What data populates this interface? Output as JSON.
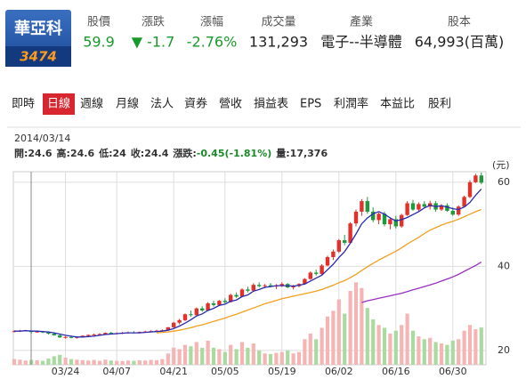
{
  "header": {
    "name": "華亞科",
    "code": "3474",
    "stats": [
      {
        "label": "股價",
        "value": "59.9",
        "color": "#1a9a2a"
      },
      {
        "label": "漲跌",
        "value": "▼ -1.7",
        "color": "#1a9a2a"
      },
      {
        "label": "漲幅",
        "value": "-2.76%",
        "color": "#1a9a2a"
      },
      {
        "label": "成交量",
        "value": "131,293",
        "color": "#222222"
      },
      {
        "label": "產業",
        "value": "電子--半導體",
        "color": "#222222"
      },
      {
        "label": "股本",
        "value": "64,993(百萬)",
        "color": "#222222"
      }
    ]
  },
  "tabs": [
    "即時",
    "日線",
    "週線",
    "月線",
    "法人",
    "資券",
    "營收",
    "損益表",
    "EPS",
    "利潤率",
    "本益比",
    "股利"
  ],
  "active_tab": 1,
  "chart_data": {
    "type": "candlestick",
    "date": "2014/03/14",
    "info": [
      {
        "label": "開:",
        "value": "24.6"
      },
      {
        "label": "高:",
        "value": "24.6"
      },
      {
        "label": "低:",
        "value": "24"
      },
      {
        "label": "收:",
        "value": "24.4"
      },
      {
        "label": "漲跌:",
        "value": "-0.45(-1.81%)",
        "color": "#1a8a2a"
      },
      {
        "label": "量:",
        "value": "17,376"
      }
    ],
    "unit": "(元)",
    "categories": [
      null,
      null,
      null,
      null,
      null,
      null,
      null,
      null,
      null,
      "03/24",
      null,
      null,
      null,
      null,
      null,
      null,
      null,
      null,
      "04/07",
      null,
      null,
      null,
      null,
      null,
      null,
      null,
      null,
      null,
      "04/21",
      null,
      null,
      null,
      null,
      null,
      null,
      null,
      null,
      "05/05",
      null,
      null,
      null,
      null,
      null,
      null,
      null,
      null,
      null,
      "05/19",
      null,
      null,
      null,
      null,
      null,
      null,
      null,
      null,
      null,
      "06/02",
      null,
      null,
      null,
      null,
      null,
      null,
      null,
      null,
      null,
      "06/16",
      null,
      null,
      null,
      null,
      null,
      null,
      null,
      null,
      null,
      "06/30",
      null,
      null,
      null,
      null,
      null
    ],
    "open": [
      24.5,
      24.6,
      24.8,
      24.6,
      24.4,
      24.5,
      24.3,
      24.0,
      23.6,
      23.1,
      23.2,
      23.0,
      23.2,
      23.5,
      23.7,
      23.8,
      23.9,
      24.2,
      24.0,
      24.1,
      24.2,
      24.3,
      24.2,
      24.4,
      24.5,
      24.6,
      24.7,
      24.8,
      25.5,
      26.6,
      27.2,
      28.6,
      28.4,
      30.0,
      29.5,
      31.2,
      30.8,
      31.8,
      31.5,
      33.2,
      32.8,
      34.5,
      34.2,
      35.6,
      35.3,
      35.5,
      35.2,
      35.4,
      35.8,
      35.0,
      35.3,
      35.8,
      37.0,
      38.5,
      38.2,
      40.2,
      42.2,
      43.5,
      46.2,
      45.6,
      50.2,
      53.0,
      55.5,
      53.0,
      51.0,
      52.5,
      50.0,
      51.2,
      49.5,
      52.2,
      55.0,
      53.5,
      54.8,
      54.2,
      55.0,
      53.5,
      54.5,
      53.2,
      52.3,
      54.2,
      56.5,
      60.0,
      61.6
    ],
    "high": [
      24.8,
      24.9,
      24.9,
      24.6,
      24.7,
      24.6,
      24.5,
      24.2,
      23.8,
      23.4,
      23.5,
      23.3,
      23.6,
      23.8,
      24.0,
      24.1,
      24.3,
      24.4,
      24.3,
      24.4,
      24.5,
      24.6,
      24.5,
      24.7,
      24.8,
      24.9,
      25.0,
      25.6,
      26.8,
      27.5,
      28.8,
      29.5,
      30.2,
      30.5,
      31.5,
      31.8,
      32.0,
      32.4,
      33.5,
      33.8,
      34.8,
      35.2,
      36.0,
      36.2,
      35.8,
      36.0,
      35.8,
      36.2,
      36.0,
      35.6,
      36.0,
      37.2,
      38.8,
      39.2,
      40.5,
      42.5,
      44.0,
      46.5,
      47.5,
      50.5,
      53.5,
      56.0,
      56.5,
      54.0,
      52.8,
      53.0,
      51.5,
      52.0,
      52.5,
      55.5,
      55.8,
      55.2,
      55.5,
      55.6,
      55.5,
      54.8,
      55.0,
      54.0,
      54.5,
      56.8,
      60.5,
      62.0,
      62.3
    ],
    "low": [
      24.3,
      24.4,
      24.5,
      24.0,
      24.2,
      24.1,
      23.8,
      23.5,
      23.0,
      22.8,
      22.9,
      22.8,
      23.1,
      23.3,
      23.5,
      23.6,
      23.8,
      23.9,
      23.8,
      23.9,
      24.0,
      24.1,
      24.0,
      24.2,
      24.3,
      24.4,
      24.5,
      24.7,
      25.4,
      26.2,
      27.0,
      28.0,
      28.3,
      29.2,
      29.4,
      30.4,
      30.6,
      31.2,
      31.4,
      32.5,
      32.7,
      33.8,
      34.0,
      35.0,
      34.8,
      35.0,
      34.6,
      35.1,
      34.8,
      34.5,
      35.0,
      35.6,
      36.8,
      37.8,
      38.0,
      40.0,
      41.5,
      43.2,
      45.0,
      45.4,
      49.5,
      52.0,
      52.5,
      50.5,
      50.0,
      49.5,
      48.8,
      49.0,
      49.2,
      52.0,
      53.2,
      53.0,
      53.8,
      53.5,
      53.0,
      53.2,
      53.0,
      52.0,
      52.0,
      54.0,
      56.2,
      59.8,
      59.5
    ],
    "close": [
      24.6,
      24.7,
      24.8,
      24.4,
      24.5,
      24.3,
      24.0,
      23.6,
      23.1,
      23.2,
      23.0,
      23.2,
      23.5,
      23.7,
      23.8,
      23.9,
      24.2,
      24.0,
      24.1,
      24.2,
      24.3,
      24.2,
      24.4,
      24.5,
      24.6,
      24.7,
      24.8,
      25.5,
      26.6,
      27.2,
      28.6,
      28.4,
      30.0,
      29.5,
      31.2,
      30.8,
      31.8,
      31.5,
      33.2,
      32.8,
      34.5,
      34.2,
      35.6,
      35.3,
      35.5,
      35.2,
      35.4,
      35.8,
      35.0,
      35.3,
      35.8,
      37.0,
      38.5,
      38.2,
      40.2,
      42.2,
      43.5,
      46.2,
      45.6,
      50.2,
      53.0,
      55.5,
      53.0,
      51.0,
      52.5,
      50.0,
      51.2,
      49.5,
      52.2,
      55.0,
      53.5,
      54.8,
      54.2,
      55.0,
      53.5,
      54.5,
      53.2,
      52.3,
      54.2,
      56.5,
      60.0,
      61.6,
      59.9
    ],
    "volume": [
      20000,
      18000,
      15000,
      17376,
      16000,
      14000,
      22000,
      30000,
      35000,
      25000,
      20000,
      18000,
      16000,
      15000,
      17000,
      14000,
      18000,
      15000,
      14000,
      13000,
      15000,
      14000,
      16000,
      15000,
      17000,
      16000,
      20000,
      40000,
      60000,
      55000,
      70000,
      65000,
      80000,
      60000,
      85000,
      60000,
      55000,
      45000,
      70000,
      55000,
      80000,
      60000,
      75000,
      50000,
      40000,
      38000,
      42000,
      45000,
      50000,
      40000,
      45000,
      90000,
      110000,
      90000,
      130000,
      170000,
      190000,
      230000,
      180000,
      260000,
      290000,
      270000,
      200000,
      160000,
      140000,
      130000,
      110000,
      120000,
      140000,
      180000,
      120000,
      100000,
      90000,
      95000,
      80000,
      75000,
      70000,
      85000,
      90000,
      120000,
      140000,
      125000,
      131293
    ],
    "volume_ylim": [
      0,
      310000
    ],
    "lines": [
      {
        "color": "#2a2ab0",
        "values": [
          24.6,
          24.6,
          24.7,
          24.6,
          24.6,
          24.5,
          24.4,
          24.2,
          23.9,
          23.6,
          23.4,
          23.2,
          23.2,
          23.3,
          23.4,
          23.6,
          23.8,
          23.9,
          24.0,
          24.1,
          24.2,
          24.2,
          24.2,
          24.3,
          24.4,
          24.5,
          24.6,
          24.8,
          25.2,
          25.8,
          26.5,
          27.3,
          28.2,
          28.7,
          29.5,
          30.0,
          30.7,
          31.0,
          31.7,
          32.0,
          32.8,
          33.2,
          34.1,
          34.5,
          35.0,
          35.2,
          35.4,
          35.4,
          35.4,
          35.3,
          35.5,
          35.8,
          36.5,
          37.2,
          37.9,
          39.2,
          40.5,
          42.1,
          43.5,
          45.5,
          47.7,
          50.1,
          51.5,
          52.5,
          53.0,
          52.4,
          51.5,
          50.8,
          51.1,
          51.6,
          52.3,
          53.0,
          53.9,
          54.5,
          54.2,
          54.4,
          54.1,
          53.7,
          53.5,
          54.1,
          55.2,
          56.9,
          58.4
        ]
      },
      {
        "color": "#f0a020",
        "values": [
          null,
          null,
          null,
          null,
          null,
          null,
          null,
          null,
          null,
          null,
          null,
          null,
          null,
          null,
          null,
          null,
          null,
          null,
          null,
          null,
          null,
          null,
          null,
          null,
          null,
          24.2,
          24.3,
          24.4,
          24.6,
          24.8,
          25.1,
          25.4,
          25.8,
          26.1,
          26.5,
          26.9,
          27.3,
          27.7,
          28.2,
          28.6,
          29.1,
          29.6,
          30.1,
          30.6,
          31.1,
          31.5,
          31.9,
          32.3,
          32.6,
          32.9,
          33.2,
          33.5,
          33.8,
          34.1,
          34.5,
          35.0,
          35.5,
          36.1,
          36.6,
          37.3,
          38.1,
          39.0,
          39.9,
          40.7,
          41.5,
          42.2,
          42.9,
          43.6,
          44.4,
          45.3,
          46.1,
          46.9,
          47.8,
          48.6,
          49.2,
          49.8,
          50.3,
          50.7,
          51.2,
          51.8,
          52.4,
          53.0,
          53.5
        ]
      },
      {
        "color": "#9a30c0",
        "values": [
          null,
          null,
          null,
          null,
          null,
          null,
          null,
          null,
          null,
          null,
          null,
          null,
          null,
          null,
          null,
          null,
          null,
          null,
          null,
          null,
          null,
          null,
          null,
          null,
          null,
          null,
          null,
          null,
          null,
          null,
          null,
          null,
          null,
          null,
          null,
          null,
          null,
          null,
          null,
          null,
          null,
          null,
          null,
          null,
          null,
          null,
          null,
          null,
          null,
          null,
          null,
          null,
          null,
          null,
          null,
          null,
          null,
          null,
          null,
          null,
          null,
          31.4,
          31.8,
          32.1,
          32.4,
          32.7,
          33.0,
          33.3,
          33.6,
          34.0,
          34.4,
          34.8,
          35.2,
          35.6,
          36.0,
          36.5,
          37.0,
          37.5,
          38.1,
          38.8,
          39.5,
          40.2,
          41.0
        ]
      }
    ],
    "up_color": "#e2302a",
    "down_color": "#1d9b3c",
    "up_volume_color": "#f5b5b5",
    "down_volume_color": "#a9dba0",
    "ylim": [
      16.6,
      62.5
    ],
    "yticks": [
      20,
      40,
      60
    ],
    "grid": true
  }
}
